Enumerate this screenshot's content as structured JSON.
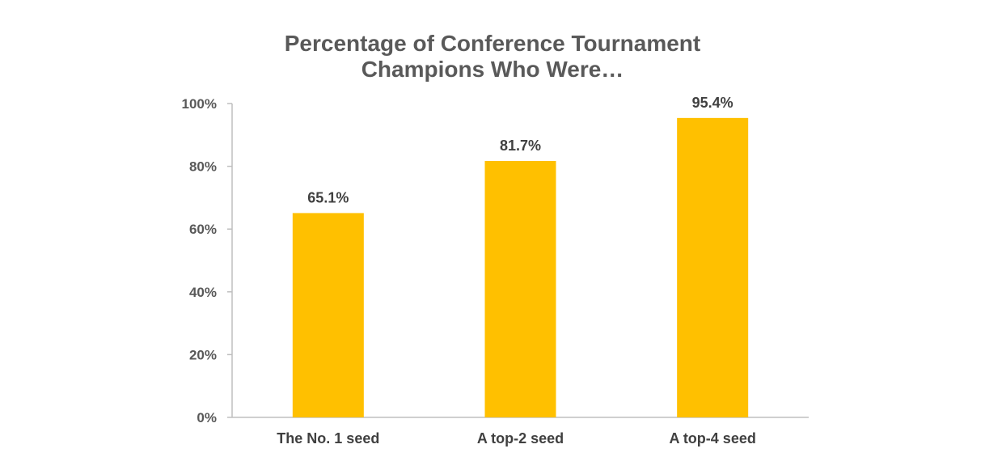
{
  "chart_data": {
    "type": "bar",
    "title_lines": [
      "Percentage of Conference Tournament",
      "Champions Who Were…"
    ],
    "categories": [
      "The No. 1 seed",
      "A top-2 seed",
      "A top-4 seed"
    ],
    "values": [
      65.1,
      81.7,
      95.4
    ],
    "data_labels": [
      "65.1%",
      "81.7%",
      "95.4%"
    ],
    "ylim": [
      0,
      100
    ],
    "yticks": [
      0,
      20,
      40,
      60,
      80,
      100
    ],
    "ytick_labels": [
      "0%",
      "20%",
      "40%",
      "60%",
      "80%",
      "100%"
    ],
    "xlabel": "",
    "ylabel": "",
    "grid": false,
    "legend": "none",
    "bar_color": "#FFC000",
    "axis_color": "#BFBFBF"
  }
}
